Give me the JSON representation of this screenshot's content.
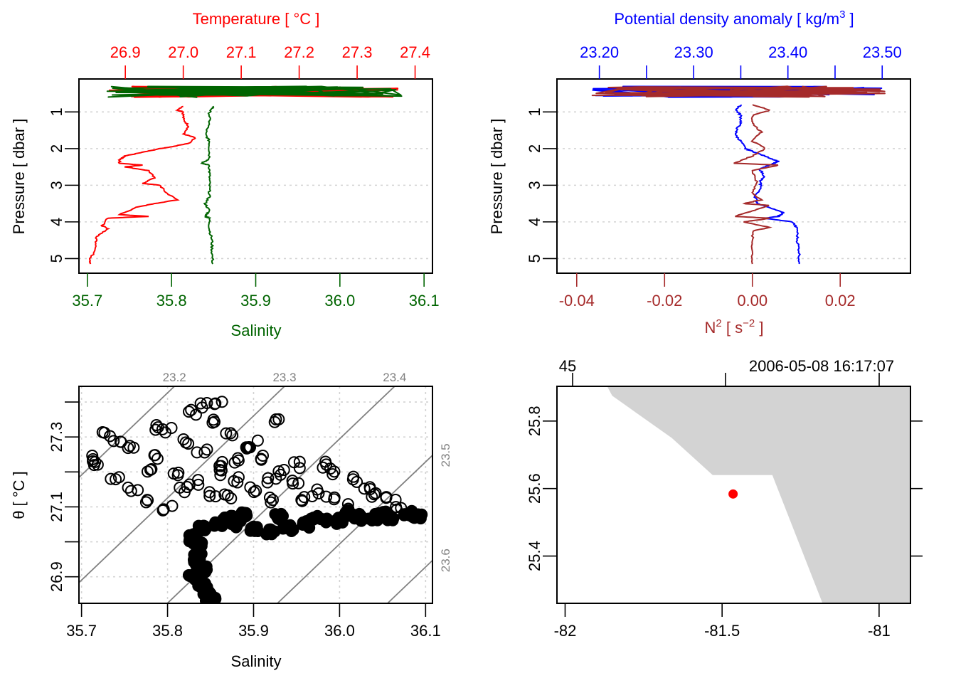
{
  "chart_data": [
    {
      "id": "profile_TS",
      "type": "line",
      "title": "",
      "top_axis": {
        "label": "Temperature [ °C ]",
        "color": "#ff0000",
        "ticks": [
          "26.9",
          "27.0",
          "27.1",
          "27.2",
          "27.3",
          "27.4"
        ],
        "tick_values": [
          26.9,
          27.0,
          27.1,
          27.2,
          27.3,
          27.4
        ],
        "range": [
          26.82,
          27.43
        ]
      },
      "bottom_axis": {
        "label": "Salinity",
        "color": "#006400",
        "ticks": [
          "35.7",
          "35.8",
          "35.9",
          "36.0",
          "36.1"
        ],
        "tick_values": [
          35.7,
          35.8,
          35.9,
          36.0,
          36.1
        ],
        "range": [
          35.69,
          36.11
        ]
      },
      "left_axis": {
        "label": "Pressure [ dbar ]",
        "ticks": [
          "1",
          "2",
          "3",
          "4",
          "5"
        ],
        "tick_values": [
          1,
          2,
          3,
          4,
          5
        ],
        "range_reversed": [
          0.1,
          5.4
        ]
      },
      "grid": "horizontal-dotted",
      "series": [
        {
          "name": "Temperature",
          "color": "#ff0000",
          "x_axis": "top",
          "points": [
            [
              27.0,
              0.85
            ],
            [
              26.99,
              0.95
            ],
            [
              27.0,
              1.0
            ],
            [
              27.0,
              1.2
            ],
            [
              27.01,
              1.4
            ],
            [
              27.0,
              1.6
            ],
            [
              27.02,
              1.7
            ],
            [
              27.01,
              1.85
            ],
            [
              26.98,
              1.95
            ],
            [
              26.96,
              2.0
            ],
            [
              26.93,
              2.1
            ],
            [
              26.9,
              2.2
            ],
            [
              26.89,
              2.3
            ],
            [
              26.89,
              2.4
            ],
            [
              26.93,
              2.45
            ],
            [
              26.9,
              2.5
            ],
            [
              26.94,
              2.6
            ],
            [
              26.95,
              2.8
            ],
            [
              26.93,
              2.95
            ],
            [
              26.96,
              3.0
            ],
            [
              26.97,
              3.2
            ],
            [
              26.99,
              3.4
            ],
            [
              26.95,
              3.5
            ],
            [
              26.92,
              3.6
            ],
            [
              26.89,
              3.8
            ],
            [
              26.94,
              3.85
            ],
            [
              26.87,
              3.9
            ],
            [
              26.86,
              4.1
            ],
            [
              26.87,
              4.2
            ],
            [
              26.85,
              4.4
            ],
            [
              26.85,
              4.7
            ],
            [
              26.84,
              5.0
            ],
            [
              26.84,
              5.15
            ]
          ]
        },
        {
          "name": "Salinity",
          "color": "#006400",
          "x_axis": "bottom",
          "points": [
            [
              35.85,
              0.85
            ],
            [
              35.845,
              1.0
            ],
            [
              35.845,
              1.3
            ],
            [
              35.84,
              1.6
            ],
            [
              35.845,
              1.8
            ],
            [
              35.845,
              2.0
            ],
            [
              35.845,
              2.3
            ],
            [
              35.835,
              2.4
            ],
            [
              35.845,
              2.45
            ],
            [
              35.845,
              2.7
            ],
            [
              35.845,
              3.0
            ],
            [
              35.845,
              3.3
            ],
            [
              35.84,
              3.5
            ],
            [
              35.845,
              3.7
            ],
            [
              35.84,
              3.85
            ],
            [
              35.845,
              3.9
            ],
            [
              35.845,
              4.2
            ],
            [
              35.848,
              4.5
            ],
            [
              35.848,
              4.8
            ],
            [
              35.849,
              5.15
            ]
          ]
        }
      ],
      "surface_tangle_pressure_range": [
        0.3,
        0.6
      ]
    },
    {
      "id": "profile_density_N2",
      "type": "line",
      "title": "",
      "top_axis": {
        "label": "Potential density anomaly [ kg/m",
        "label_superscript": "3",
        "label_suffix": " ]",
        "color": "#0000ff",
        "ticks": [
          "23.20",
          "23.30",
          "23.40",
          "23.50"
        ],
        "tick_values": [
          23.2,
          23.25,
          23.3,
          23.35,
          23.4,
          23.45,
          23.5
        ],
        "range": [
          23.155,
          23.53
        ]
      },
      "bottom_axis": {
        "label": "N",
        "label_superscript": "2",
        "label_unit": " [ s",
        "label_unit_superscript": "−2",
        "label_suffix": " ]",
        "color": "#a52a2a",
        "ticks": [
          "-0.04",
          "-0.02",
          "0.00",
          "0.02"
        ],
        "tick_values": [
          -0.04,
          -0.02,
          0.0,
          0.02
        ],
        "range": [
          -0.0445,
          0.036
        ]
      },
      "left_axis": {
        "label": "Pressure [ dbar ]",
        "ticks": [
          "1",
          "2",
          "3",
          "4",
          "5"
        ],
        "tick_values": [
          1,
          2,
          3,
          4,
          5
        ],
        "range_reversed": [
          0.1,
          5.4
        ]
      },
      "grid": "horizontal-dotted",
      "series": [
        {
          "name": "Potential density anomaly",
          "color": "#0000ff",
          "x_axis": "top",
          "points": [
            [
              23.35,
              0.8
            ],
            [
              23.345,
              0.95
            ],
            [
              23.35,
              1.1
            ],
            [
              23.35,
              1.3
            ],
            [
              23.345,
              1.5
            ],
            [
              23.345,
              1.65
            ],
            [
              23.35,
              1.8
            ],
            [
              23.355,
              2.0
            ],
            [
              23.365,
              2.1
            ],
            [
              23.38,
              2.25
            ],
            [
              23.39,
              2.35
            ],
            [
              23.38,
              2.45
            ],
            [
              23.37,
              2.55
            ],
            [
              23.375,
              2.75
            ],
            [
              23.37,
              2.9
            ],
            [
              23.372,
              3.05
            ],
            [
              23.365,
              3.3
            ],
            [
              23.368,
              3.5
            ],
            [
              23.38,
              3.6
            ],
            [
              23.395,
              3.75
            ],
            [
              23.39,
              3.85
            ],
            [
              23.375,
              3.9
            ],
            [
              23.405,
              4.0
            ],
            [
              23.41,
              4.2
            ],
            [
              23.41,
              4.5
            ],
            [
              23.412,
              4.8
            ],
            [
              23.412,
              5.15
            ]
          ]
        },
        {
          "name": "N2",
          "color": "#a52a2a",
          "x_axis": "bottom",
          "points": [
            [
              0.0,
              0.8
            ],
            [
              0.004,
              0.95
            ],
            [
              0.0,
              1.1
            ],
            [
              0.0,
              1.3
            ],
            [
              0.002,
              1.55
            ],
            [
              0.0,
              1.8
            ],
            [
              0.003,
              2.0
            ],
            [
              0.0,
              2.2
            ],
            [
              -0.004,
              2.4
            ],
            [
              0.006,
              2.45
            ],
            [
              0.0,
              2.6
            ],
            [
              0.001,
              2.9
            ],
            [
              0.0,
              3.2
            ],
            [
              0.002,
              3.4
            ],
            [
              -0.002,
              3.5
            ],
            [
              0.004,
              3.55
            ],
            [
              0.0,
              3.7
            ],
            [
              -0.004,
              3.85
            ],
            [
              0.004,
              3.9
            ],
            [
              -0.002,
              4.0
            ],
            [
              0.004,
              4.15
            ],
            [
              0.0,
              4.25
            ],
            [
              0.0,
              4.6
            ],
            [
              0.0,
              5.15
            ]
          ]
        }
      ],
      "surface_tangle_pressure_range": [
        0.3,
        0.6
      ]
    },
    {
      "id": "TS_diagram",
      "type": "scatter",
      "title": "",
      "xlabel": "Salinity",
      "ylabel": "θ [ °C ]",
      "xticks": [
        "35.7",
        "35.8",
        "35.9",
        "36.0",
        "36.1"
      ],
      "xtick_values": [
        35.7,
        35.8,
        35.9,
        36.0,
        36.1
      ],
      "xlim": [
        35.697,
        36.108
      ],
      "yticks": [
        "27.3",
        "27.1",
        "26.9"
      ],
      "ytick_values_all": [
        26.9,
        27.0,
        27.1,
        27.2,
        27.3,
        27.4
      ],
      "ylim": [
        26.824,
        27.445
      ],
      "grid": "dotted",
      "isopycnals": {
        "color": "#808080",
        "labels": [
          "23.2",
          "23.3",
          "23.4",
          "23.5",
          "23.6"
        ],
        "values": [
          23.2,
          23.3,
          23.4,
          23.5,
          23.6
        ]
      },
      "marker": "open-circle",
      "point_groups": [
        {
          "name": "deep-stem",
          "points": [
            [
              35.83,
              27.02
            ],
            [
              35.83,
              27.0
            ],
            [
              35.835,
              26.97
            ],
            [
              35.835,
              26.94
            ],
            [
              35.83,
              26.9
            ],
            [
              35.84,
              26.88
            ],
            [
              35.845,
              26.86
            ],
            [
              35.85,
              26.84
            ],
            [
              35.84,
              26.92
            ],
            [
              35.835,
              26.99
            ]
          ]
        },
        {
          "name": "dense-band",
          "points": [
            [
              35.84,
              27.04
            ],
            [
              35.86,
              27.05
            ],
            [
              35.88,
              27.05
            ],
            [
              35.9,
              27.04
            ],
            [
              35.92,
              27.03
            ],
            [
              35.94,
              27.04
            ],
            [
              35.96,
              27.05
            ],
            [
              35.98,
              27.06
            ],
            [
              36.0,
              27.06
            ],
            [
              36.02,
              27.07
            ],
            [
              36.04,
              27.07
            ],
            [
              36.06,
              27.07
            ],
            [
              36.08,
              27.08
            ],
            [
              36.09,
              27.07
            ],
            [
              35.87,
              27.07
            ],
            [
              35.89,
              27.08
            ],
            [
              35.93,
              27.07
            ],
            [
              35.97,
              27.07
            ],
            [
              36.01,
              27.08
            ],
            [
              36.05,
              27.08
            ]
          ]
        },
        {
          "name": "upper-scatter",
          "points": [
            [
              35.71,
              27.24
            ],
            [
              35.72,
              27.22
            ],
            [
              35.74,
              27.18
            ],
            [
              35.76,
              27.15
            ],
            [
              35.78,
              27.12
            ],
            [
              35.8,
              27.1
            ],
            [
              35.73,
              27.31
            ],
            [
              35.74,
              27.29
            ],
            [
              35.76,
              27.27
            ],
            [
              35.79,
              27.24
            ],
            [
              35.81,
              27.2
            ],
            [
              35.83,
              27.17
            ],
            [
              35.85,
              27.14
            ],
            [
              35.79,
              27.33
            ],
            [
              35.8,
              27.32
            ],
            [
              35.82,
              27.29
            ],
            [
              35.84,
              27.26
            ],
            [
              35.86,
              27.22
            ],
            [
              35.88,
              27.18
            ],
            [
              35.9,
              27.15
            ],
            [
              35.92,
              27.12
            ],
            [
              35.83,
              27.37
            ],
            [
              35.84,
              27.39
            ],
            [
              35.86,
              27.4
            ],
            [
              35.85,
              27.34
            ],
            [
              35.87,
              27.31
            ],
            [
              35.89,
              27.27
            ],
            [
              35.91,
              27.24
            ],
            [
              35.93,
              27.2
            ],
            [
              35.95,
              27.17
            ],
            [
              35.97,
              27.14
            ],
            [
              35.99,
              27.12
            ],
            [
              36.01,
              27.1
            ],
            [
              35.93,
              27.35
            ],
            [
              35.9,
              27.28
            ],
            [
              35.95,
              27.22
            ],
            [
              35.99,
              27.2
            ],
            [
              36.03,
              27.16
            ],
            [
              36.06,
              27.12
            ],
            [
              36.07,
              27.1
            ],
            [
              35.98,
              27.22
            ],
            [
              36.02,
              27.18
            ],
            [
              35.88,
              27.23
            ],
            [
              35.86,
              27.2
            ],
            [
              35.92,
              27.18
            ],
            [
              35.82,
              27.15
            ],
            [
              35.78,
              27.2
            ],
            [
              35.96,
              27.12
            ],
            [
              36.04,
              27.13
            ],
            [
              35.87,
              27.13
            ]
          ]
        }
      ]
    },
    {
      "id": "station_map",
      "type": "scatter",
      "title": "",
      "top_labels": [
        "45",
        "2006-05-08 16:17:07"
      ],
      "xticks": [
        "-82",
        "-81.5",
        "-81"
      ],
      "xtick_values": [
        -82.0,
        -81.5,
        -81.0
      ],
      "xlim": [
        -82.026,
        -80.9
      ],
      "yticks": [
        "25.8",
        "25.6",
        "25.4"
      ],
      "ytick_values": [
        25.8,
        25.6,
        25.4
      ],
      "ylim": [
        25.26,
        25.903
      ],
      "land_color": "#d3d3d3",
      "land_polygon": [
        [
          -81.866,
          25.903
        ],
        [
          -81.85,
          25.875
        ],
        [
          -81.66,
          25.75
        ],
        [
          -81.53,
          25.64
        ],
        [
          -81.34,
          25.64
        ],
        [
          -81.18,
          25.26
        ],
        [
          -80.9,
          25.26
        ],
        [
          -80.9,
          25.903
        ]
      ],
      "station": {
        "lon": -81.465,
        "lat": 25.584,
        "color": "#ff0000"
      }
    }
  ]
}
